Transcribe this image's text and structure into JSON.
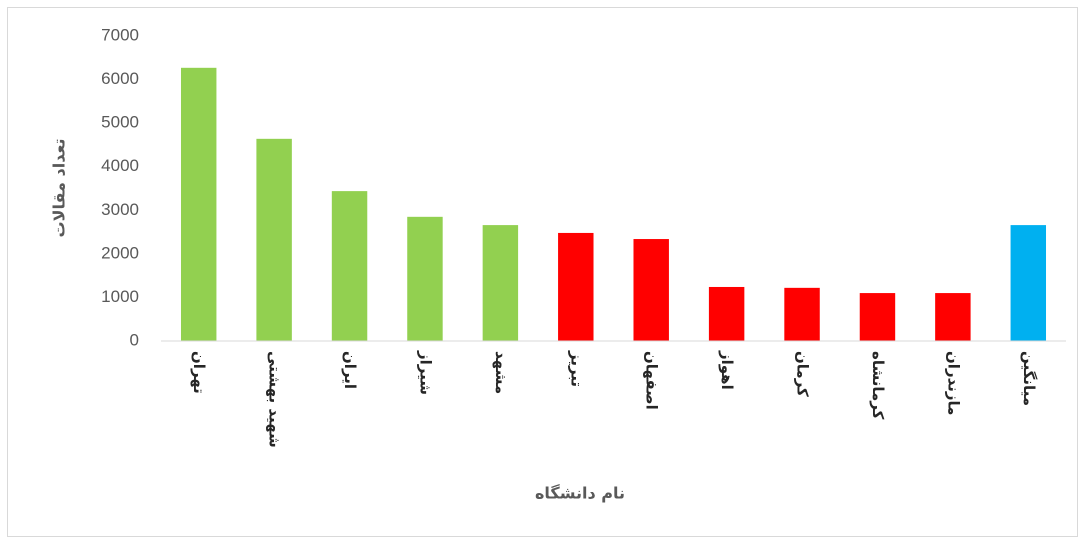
{
  "chart_data": {
    "type": "bar",
    "x_label": "نام دانشگاه",
    "y_label": "تعداد مقالات",
    "categories": [
      "تهران",
      "شهید بهشتی",
      "ایران",
      "شیراز",
      "مشهد",
      "تبریز",
      "اصفهان",
      "اهواز",
      "کرمان",
      "کرمانشاه",
      "مازندران",
      "میانگین"
    ],
    "values": [
      6270,
      4640,
      3440,
      2850,
      2660,
      2480,
      2340,
      1240,
      1220,
      1100,
      1100,
      2660
    ],
    "colors": [
      "#92d050",
      "#92d050",
      "#92d050",
      "#92d050",
      "#92d050",
      "#ff0000",
      "#ff0000",
      "#ff0000",
      "#ff0000",
      "#ff0000",
      "#ff0000",
      "#00b0f0"
    ],
    "ylim": [
      0,
      7000
    ],
    "yticks": [
      0,
      1000,
      2000,
      3000,
      4000,
      5000,
      6000,
      7000
    ],
    "grid": false
  }
}
